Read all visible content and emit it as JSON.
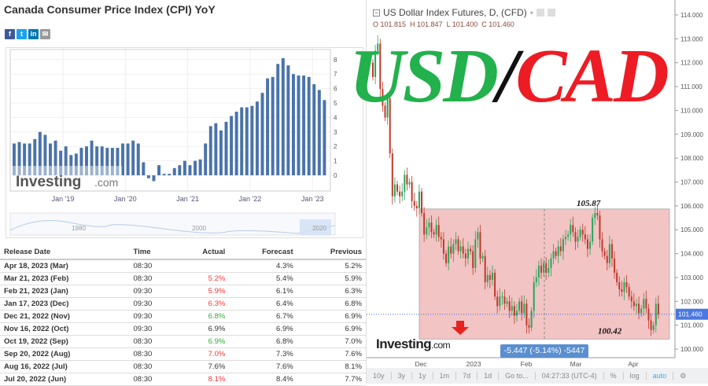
{
  "left": {
    "title": "Canada Consumer Price Index (CPI) YoY",
    "share": [
      {
        "icon": "facebook-icon",
        "label": "f",
        "color": "#3b5998"
      },
      {
        "icon": "twitter-icon",
        "label": "t",
        "color": "#1da1f2"
      },
      {
        "icon": "linkedin-icon",
        "label": "in",
        "color": "#0077b5"
      },
      {
        "icon": "email-icon",
        "label": "✉",
        "color": "#999999"
      }
    ],
    "watermark": "Investing",
    "watermark_suffix": ".com",
    "nav_labels": [
      "1980",
      "2000",
      "2020"
    ]
  },
  "chart_data": {
    "type": "bar",
    "title": "",
    "x_tick_labels": [
      "Jan '19",
      "Jan '20",
      "Jan '21",
      "Jan '22",
      "Jan '23"
    ],
    "y_ticks": [
      0,
      1,
      2,
      3,
      4,
      5,
      6,
      7,
      8
    ],
    "ylim": [
      -0.5,
      8.5
    ],
    "categories_start": "Feb 2018",
    "values": [
      2.2,
      2.3,
      2.2,
      2.2,
      2.5,
      3.0,
      2.8,
      2.2,
      2.4,
      1.7,
      2.0,
      1.4,
      1.5,
      1.9,
      2.0,
      2.4,
      2.0,
      2.0,
      1.9,
      1.9,
      1.9,
      2.2,
      2.2,
      2.4,
      2.2,
      0.9,
      -0.2,
      -0.4,
      0.7,
      0.1,
      0.1,
      0.5,
      0.7,
      1.0,
      0.7,
      1.0,
      1.1,
      2.2,
      3.4,
      3.6,
      3.1,
      3.7,
      4.1,
      4.4,
      4.7,
      4.7,
      4.8,
      5.1,
      5.7,
      6.7,
      6.8,
      7.7,
      8.1,
      7.6,
      7.0,
      6.9,
      6.9,
      6.8,
      6.3,
      5.9,
      5.2
    ],
    "bar_color": "#4a73aa"
  },
  "table": {
    "headers": [
      "Release Date",
      "Time",
      "Actual",
      "Forecast",
      "Previous"
    ],
    "rows": [
      {
        "date": "Apr 18, 2023 (Mar)",
        "time": "08:30",
        "actual": "",
        "actual_color": "#333333",
        "forecast": "4.3%",
        "previous": "5.2%"
      },
      {
        "date": "Mar 21, 2023 (Feb)",
        "time": "08:30",
        "actual": "5.2%",
        "actual_color": "#ff3333",
        "forecast": "5.4%",
        "previous": "5.9%"
      },
      {
        "date": "Feb 21, 2023 (Jan)",
        "time": "09:30",
        "actual": "5.9%",
        "actual_color": "#ff3333",
        "forecast": "6.1%",
        "previous": "6.3%"
      },
      {
        "date": "Jan 17, 2023 (Dec)",
        "time": "09:30",
        "actual": "6.3%",
        "actual_color": "#ff3333",
        "forecast": "6.4%",
        "previous": "6.8%"
      },
      {
        "date": "Dec 21, 2022 (Nov)",
        "time": "09:30",
        "actual": "6.8%",
        "actual_color": "#33aa33",
        "forecast": "6.7%",
        "previous": "6.9%"
      },
      {
        "date": "Nov 16, 2022 (Oct)",
        "time": "09:30",
        "actual": "6.9%",
        "actual_color": "#333333",
        "forecast": "6.9%",
        "previous": "6.9%"
      },
      {
        "date": "Oct 19, 2022 (Sep)",
        "time": "08:30",
        "actual": "6.9%",
        "actual_color": "#33aa33",
        "forecast": "6.8%",
        "previous": "7.0%"
      },
      {
        "date": "Sep 20, 2022 (Aug)",
        "time": "08:30",
        "actual": "7.0%",
        "actual_color": "#ff3333",
        "forecast": "7.3%",
        "previous": "7.6%"
      },
      {
        "date": "Aug 16, 2022 (Jul)",
        "time": "08:30",
        "actual": "7.6%",
        "actual_color": "#333333",
        "forecast": "7.6%",
        "previous": "8.1%"
      },
      {
        "date": "Jul 20, 2022 (Jun)",
        "time": "08:30",
        "actual": "8.1%",
        "actual_color": "#ff3333",
        "forecast": "8.4%",
        "previous": "7.7%"
      }
    ]
  },
  "right": {
    "title": "US Dollar Index Futures, D, (CFD)",
    "ohlc": "O 101.815  H 101.847  L 101.400  C 101.460",
    "current_price": "101.460",
    "high_label": "105.87",
    "low_label": "100.42",
    "measure_label": "-5.447 (-5.14%) -5447",
    "watermark": "Investing",
    "watermark_suffix": ".com",
    "date_labels": [
      "Dec",
      "2023",
      "Feb",
      "Mar",
      "Apr"
    ],
    "toolbar": [
      "10y",
      "3y",
      "1y",
      "1m",
      "7d",
      "1d",
      "Go to...",
      "04:27:33 (UTC-4)",
      "%",
      "log",
      "auto"
    ]
  },
  "price_chart": {
    "type": "candlestick",
    "y_ticks": [
      114,
      113,
      112,
      111,
      110,
      109,
      108,
      107,
      106,
      105,
      104,
      103,
      102,
      101,
      100
    ],
    "first_open": 112.0,
    "closes": [
      111.4,
      112.5,
      112.8,
      110.9,
      110.2,
      109.7,
      110.5,
      108.2,
      106.4,
      106.9,
      106.6,
      106.4,
      106.6,
      107.3,
      106.9,
      107.0,
      106.2,
      106.0,
      105.9,
      106.6,
      105.7,
      104.8,
      105.1,
      105.3,
      104.9,
      104.8,
      105.2,
      104.7,
      104.6,
      104.0,
      103.6,
      104.3,
      104.0,
      104.4,
      104.6,
      104.1,
      104.3,
      104.0,
      103.8,
      104.2,
      104.1,
      103.4,
      104.6,
      104.9,
      103.8,
      103.9,
      102.8,
      103.1,
      102.9,
      103.2,
      102.2,
      101.8,
      102.2,
      102.2,
      101.9,
      102.0,
      101.6,
      101.8,
      101.4,
      101.6,
      102.0,
      101.5,
      101.9,
      101.0,
      100.9,
      101.6,
      102.8,
      103.0,
      103.5,
      103.2,
      103.6,
      103.2,
      103.4,
      103.8,
      104.1,
      103.9,
      104.3,
      104.1,
      104.6,
      104.7,
      104.8,
      105.2,
      104.9,
      104.5,
      104.7,
      105.0,
      104.8,
      104.6,
      104.2,
      104.5,
      105.5,
      105.7,
      105.6,
      104.6,
      104.1,
      103.9,
      103.6,
      104.4,
      103.8,
      103.2,
      102.8,
      102.5,
      102.4,
      102.8,
      102.6,
      102.2,
      102.0,
      101.8,
      101.9,
      101.5,
      101.7,
      102.1,
      101.7,
      101.2,
      100.8,
      101.0,
      101.9,
      101.46
    ],
    "up_color": "#26a65b",
    "down_color": "#c0392b",
    "range_high": 105.87,
    "range_low": 100.42,
    "range_color": "#f2c4c4"
  },
  "overlay": {
    "usd": "USD",
    "slash": "/",
    "cad": "CAD",
    "usd_color": "#22b14c",
    "slash_color": "#111111",
    "cad_color": "#ed1c24"
  }
}
